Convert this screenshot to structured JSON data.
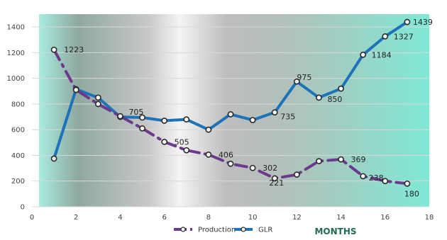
{
  "chart_data": {
    "type": "line",
    "title": "",
    "xlabel": "MONTHS",
    "ylabel": "",
    "xlim": [
      0,
      18
    ],
    "ylim": [
      0,
      1500
    ],
    "x_ticks": [
      "0",
      "2",
      "4",
      "6",
      "8",
      "10",
      "12",
      "14",
      "16",
      "18"
    ],
    "y_ticks": [
      "0",
      "200",
      "400",
      "600",
      "800",
      "1000",
      "1200",
      "1400"
    ],
    "grid": "horizontal",
    "legend_position": "bottom",
    "series": [
      {
        "name": "Production",
        "color": "#6b3a8c",
        "style": "dash-dot",
        "points": [
          {
            "x": 1,
            "y": 1223,
            "label": "1223"
          },
          {
            "x": 2,
            "y": 910
          },
          {
            "x": 3,
            "y": 800
          },
          {
            "x": 4,
            "y": 705,
            "label": "705"
          },
          {
            "x": 5,
            "y": 610
          },
          {
            "x": 6,
            "y": 505,
            "label": "505"
          },
          {
            "x": 7,
            "y": 440
          },
          {
            "x": 8,
            "y": 406,
            "label": "406"
          },
          {
            "x": 9,
            "y": 335
          },
          {
            "x": 10,
            "y": 302,
            "label": "302"
          },
          {
            "x": 11,
            "y": 221,
            "label": "221"
          },
          {
            "x": 12,
            "y": 250
          },
          {
            "x": 13,
            "y": 355
          },
          {
            "x": 14,
            "y": 369,
            "label": "369"
          },
          {
            "x": 15,
            "y": 238,
            "label": "238"
          },
          {
            "x": 16,
            "y": 200
          },
          {
            "x": 17,
            "y": 180,
            "label": "180"
          }
        ]
      },
      {
        "name": "GLR",
        "color": "#1d72b8",
        "style": "solid",
        "points": [
          {
            "x": 1,
            "y": 375
          },
          {
            "x": 2,
            "y": 915
          },
          {
            "x": 3,
            "y": 850
          },
          {
            "x": 4,
            "y": 700
          },
          {
            "x": 5,
            "y": 695
          },
          {
            "x": 6,
            "y": 670
          },
          {
            "x": 7,
            "y": 680
          },
          {
            "x": 8,
            "y": 600
          },
          {
            "x": 9,
            "y": 720
          },
          {
            "x": 10,
            "y": 675
          },
          {
            "x": 11,
            "y": 735,
            "label": "735"
          },
          {
            "x": 12,
            "y": 975,
            "label": "975"
          },
          {
            "x": 13,
            "y": 850,
            "label": "850"
          },
          {
            "x": 14,
            "y": 920
          },
          {
            "x": 15,
            "y": 1184,
            "label": "1184"
          },
          {
            "x": 16,
            "y": 1327,
            "label": "1327"
          },
          {
            "x": 17,
            "y": 1439,
            "label": "1439"
          }
        ]
      }
    ]
  }
}
